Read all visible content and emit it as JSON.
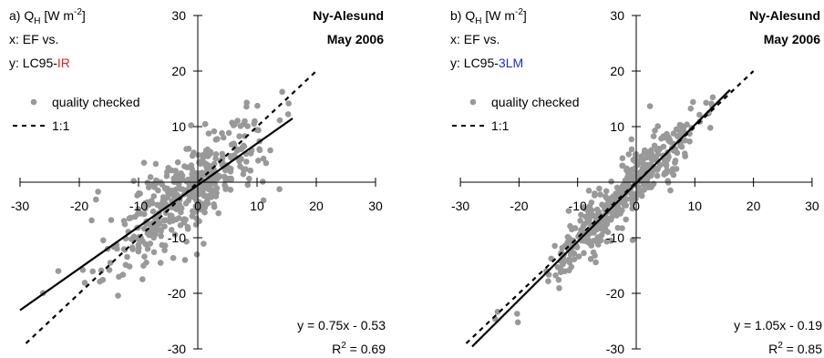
{
  "chart_data": [
    {
      "type": "scatter",
      "panel_label": "a)",
      "quantity": "Q",
      "quantity_sub": "H",
      "units": "[W m",
      "units_sup": "-2",
      "units_close": "]",
      "x_desc": "x: EF vs.",
      "y_desc_prefix": "y: LC95-",
      "y_desc_method": "IR",
      "method_color": "#e8231d",
      "site": "Ny-Alesund",
      "period": "May 2006",
      "legend_points": "quality checked",
      "legend_line": "1:1",
      "eq_text": "y = 0.75x - 0.53",
      "r2_prefix": "R",
      "r2_sup": "2",
      "r2_value": " = 0.69",
      "xlim": [
        -30,
        30
      ],
      "ylim": [
        -30,
        30
      ],
      "x_ticks": [
        "-30",
        "-20",
        "-10",
        "0",
        "10",
        "20",
        "30"
      ],
      "y_ticks": [
        "30",
        "20",
        "10",
        "-10",
        "-20",
        "-30"
      ],
      "fit": {
        "slope": 0.75,
        "intercept": -0.53,
        "x_range": [
          -30,
          16
        ]
      },
      "one_to_one_range": [
        -29,
        20
      ],
      "point_color": "#999999",
      "n_points": 430,
      "scatter_sd": 4.0,
      "x_dist": [
        -28,
        16,
        -2,
        6.5
      ]
    },
    {
      "type": "scatter",
      "panel_label": "b)",
      "quantity": "Q",
      "quantity_sub": "H",
      "units": "[W m",
      "units_sup": "-2",
      "units_close": "]",
      "x_desc": "x: EF vs.",
      "y_desc_prefix": "y: LC95-",
      "y_desc_method": "3LM",
      "method_color": "#1a2fd1",
      "site": "Ny-Alesund",
      "period": "May 2006",
      "legend_points": "quality checked",
      "legend_line": "1:1",
      "eq_text": "y = 1.05x - 0.19",
      "r2_prefix": "R",
      "r2_sup": "2",
      "r2_value": " = 0.85",
      "xlim": [
        -30,
        30
      ],
      "ylim": [
        -30,
        30
      ],
      "x_ticks": [
        "-30",
        "-20",
        "-10",
        "0",
        "10",
        "20",
        "30"
      ],
      "y_ticks": [
        "30",
        "20",
        "10",
        "-10",
        "-20",
        "-30"
      ],
      "fit": {
        "slope": 1.05,
        "intercept": -0.19,
        "x_range": [
          -28,
          16
        ]
      },
      "one_to_one_range": [
        -29,
        20
      ],
      "point_color": "#999999",
      "n_points": 430,
      "scatter_sd": 2.6,
      "x_dist": [
        -27,
        16,
        -2,
        6.5
      ]
    }
  ]
}
